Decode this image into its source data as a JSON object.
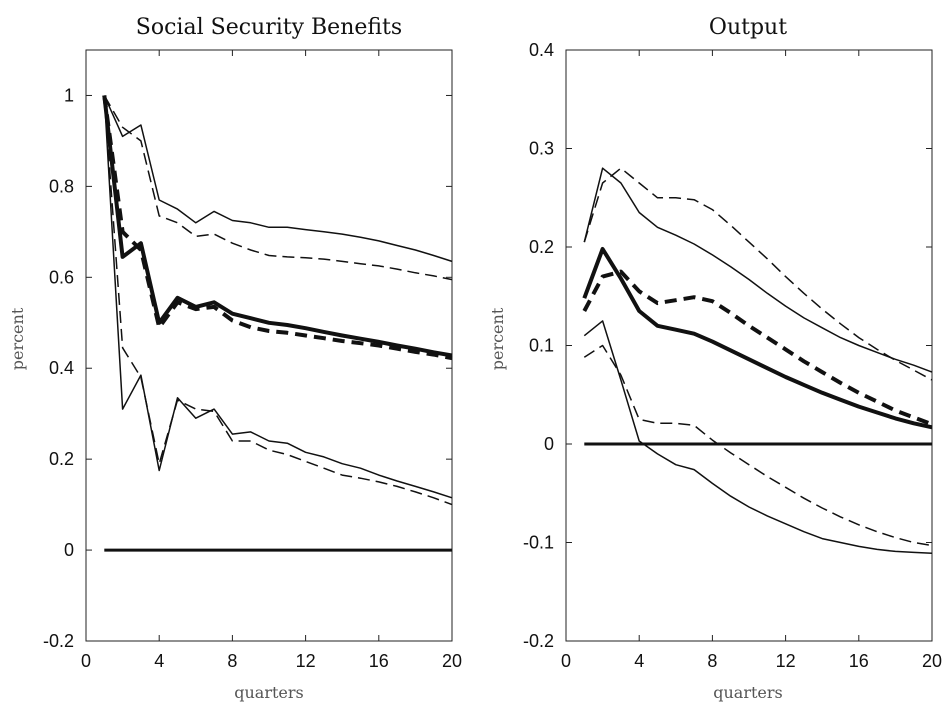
{
  "chart_data": [
    {
      "type": "line",
      "title": "Social Security Benefits",
      "xlabel": "quarters",
      "ylabel": "percent",
      "xlim": [
        0,
        20
      ],
      "ylim": [
        -0.2,
        1.1
      ],
      "xticks": [
        "0",
        "4",
        "8",
        "12",
        "16",
        "20"
      ],
      "yticks": [
        "-0.2",
        "0",
        "0.2",
        "0.4",
        "0.6",
        "0.8",
        "1"
      ],
      "grid": false,
      "x": [
        1,
        2,
        3,
        4,
        5,
        6,
        7,
        8,
        9,
        10,
        11,
        12,
        13,
        14,
        15,
        16,
        17,
        18,
        19,
        20
      ],
      "series": [
        {
          "style": "solid-thin",
          "values": [
            1.0,
            0.91,
            0.935,
            0.77,
            0.75,
            0.72,
            0.745,
            0.725,
            0.72,
            0.71,
            0.71,
            0.705,
            0.7,
            0.695,
            0.688,
            0.68,
            0.67,
            0.66,
            0.648,
            0.635
          ]
        },
        {
          "style": "dashed-thin",
          "values": [
            1.0,
            0.93,
            0.9,
            0.735,
            0.72,
            0.69,
            0.695,
            0.675,
            0.66,
            0.648,
            0.645,
            0.643,
            0.64,
            0.635,
            0.63,
            0.625,
            0.618,
            0.61,
            0.603,
            0.595
          ]
        },
        {
          "style": "solid-thick",
          "values": [
            1.0,
            0.645,
            0.675,
            0.5,
            0.555,
            0.535,
            0.545,
            0.52,
            0.51,
            0.5,
            0.495,
            0.488,
            0.48,
            0.472,
            0.465,
            0.458,
            0.45,
            0.443,
            0.435,
            0.428
          ]
        },
        {
          "style": "dashed-thick",
          "values": [
            1.0,
            0.7,
            0.66,
            0.49,
            0.545,
            0.53,
            0.535,
            0.505,
            0.49,
            0.482,
            0.478,
            0.472,
            0.466,
            0.46,
            0.455,
            0.45,
            0.443,
            0.436,
            0.43,
            0.422
          ]
        },
        {
          "style": "solid-thin",
          "values": [
            1.0,
            0.31,
            0.385,
            0.175,
            0.335,
            0.29,
            0.31,
            0.255,
            0.26,
            0.24,
            0.235,
            0.215,
            0.205,
            0.19,
            0.18,
            0.165,
            0.152,
            0.14,
            0.128,
            0.115
          ]
        },
        {
          "style": "dashed-thin",
          "values": [
            1.0,
            0.445,
            0.38,
            0.19,
            0.33,
            0.31,
            0.305,
            0.24,
            0.24,
            0.22,
            0.21,
            0.195,
            0.18,
            0.165,
            0.158,
            0.15,
            0.14,
            0.128,
            0.115,
            0.1
          ]
        },
        {
          "style": "solid-baseline",
          "values": [
            0,
            0,
            0,
            0,
            0,
            0,
            0,
            0,
            0,
            0,
            0,
            0,
            0,
            0,
            0,
            0,
            0,
            0,
            0,
            0
          ]
        }
      ]
    },
    {
      "type": "line",
      "title": "Output",
      "xlabel": "quarters",
      "ylabel": "percent",
      "xlim": [
        0,
        20
      ],
      "ylim": [
        -0.2,
        0.4
      ],
      "xticks": [
        "0",
        "4",
        "8",
        "12",
        "16",
        "20"
      ],
      "yticks": [
        "-0.2",
        "-0.1",
        "0",
        "0.1",
        "0.2",
        "0.3",
        "0.4"
      ],
      "grid": false,
      "x": [
        1,
        2,
        3,
        4,
        5,
        6,
        7,
        8,
        9,
        10,
        11,
        12,
        13,
        14,
        15,
        16,
        17,
        18,
        19,
        20
      ],
      "series": [
        {
          "style": "solid-thin",
          "values": [
            0.205,
            0.28,
            0.265,
            0.235,
            0.22,
            0.212,
            0.203,
            0.192,
            0.18,
            0.167,
            0.153,
            0.14,
            0.128,
            0.118,
            0.108,
            0.1,
            0.093,
            0.086,
            0.08,
            0.073
          ]
        },
        {
          "style": "dashed-thin",
          "values": [
            0.205,
            0.265,
            0.28,
            0.265,
            0.25,
            0.25,
            0.248,
            0.238,
            0.222,
            0.205,
            0.188,
            0.17,
            0.153,
            0.137,
            0.122,
            0.108,
            0.096,
            0.085,
            0.075,
            0.065
          ]
        },
        {
          "style": "solid-thick",
          "values": [
            0.148,
            0.198,
            0.168,
            0.135,
            0.12,
            0.116,
            0.112,
            0.104,
            0.095,
            0.086,
            0.077,
            0.068,
            0.06,
            0.052,
            0.045,
            0.038,
            0.032,
            0.026,
            0.021,
            0.017
          ]
        },
        {
          "style": "dashed-thick",
          "values": [
            0.135,
            0.17,
            0.175,
            0.155,
            0.143,
            0.146,
            0.149,
            0.145,
            0.133,
            0.12,
            0.108,
            0.096,
            0.084,
            0.073,
            0.062,
            0.052,
            0.043,
            0.034,
            0.027,
            0.02
          ]
        },
        {
          "style": "solid-thin",
          "values": [
            0.11,
            0.125,
            0.065,
            0.003,
            -0.01,
            -0.021,
            -0.026,
            -0.04,
            -0.053,
            -0.064,
            -0.073,
            -0.081,
            -0.089,
            -0.096,
            -0.1,
            -0.104,
            -0.107,
            -0.109,
            -0.11,
            -0.111
          ]
        },
        {
          "style": "dashed-thin",
          "values": [
            0.088,
            0.1,
            0.07,
            0.025,
            0.021,
            0.021,
            0.019,
            0.004,
            -0.009,
            -0.021,
            -0.033,
            -0.044,
            -0.055,
            -0.065,
            -0.074,
            -0.082,
            -0.089,
            -0.095,
            -0.1,
            -0.103
          ]
        },
        {
          "style": "solid-baseline",
          "values": [
            0,
            0,
            0,
            0,
            0,
            0,
            0,
            0,
            0,
            0,
            0,
            0,
            0,
            0,
            0,
            0,
            0,
            0,
            0,
            0
          ]
        }
      ]
    }
  ]
}
